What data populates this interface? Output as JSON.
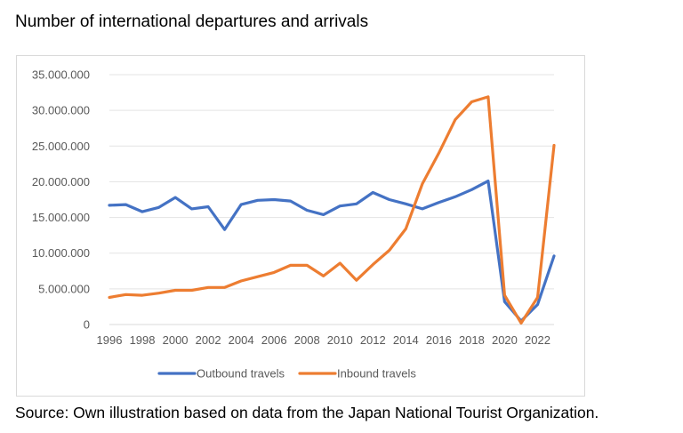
{
  "title": "Number of international departures and arrivals",
  "source": "Source: Own illustration based on data from the Japan National Tourist Organization.",
  "chart_data": {
    "type": "line",
    "title": "",
    "xlabel": "",
    "ylabel": "",
    "x": [
      1996,
      1997,
      1998,
      1999,
      2000,
      2001,
      2002,
      2003,
      2004,
      2005,
      2006,
      2007,
      2008,
      2009,
      2010,
      2011,
      2012,
      2013,
      2014,
      2015,
      2016,
      2017,
      2018,
      2019,
      2020,
      2021,
      2022,
      2023
    ],
    "xlim": [
      1996,
      2023
    ],
    "ylim": [
      0,
      35000000
    ],
    "x_tick_labels": [
      "1996",
      "1998",
      "2000",
      "2002",
      "2004",
      "2006",
      "2008",
      "2010",
      "2012",
      "2014",
      "2016",
      "2018",
      "2020",
      "2022"
    ],
    "y_ticks": [
      0,
      5000000,
      10000000,
      15000000,
      20000000,
      25000000,
      30000000,
      35000000
    ],
    "y_tick_labels": [
      "0",
      "5.000.000",
      "10.000.000",
      "15.000.000",
      "20.000.000",
      "25.000.000",
      "30.000.000",
      "35.000.000"
    ],
    "grid": "horizontal",
    "legend_position": "bottom",
    "series": [
      {
        "name": "Outbound travels",
        "color": "#4472c4",
        "values": [
          16700000,
          16800000,
          15800000,
          16400000,
          17800000,
          16200000,
          16500000,
          13300000,
          16800000,
          17400000,
          17500000,
          17300000,
          16000000,
          15400000,
          16600000,
          16900000,
          18500000,
          17500000,
          16900000,
          16200000,
          17100000,
          17900000,
          18900000,
          20100000,
          3200000,
          500000,
          2800000,
          9600000
        ]
      },
      {
        "name": "Inbound travels",
        "color": "#ed7d31",
        "values": [
          3800000,
          4200000,
          4100000,
          4400000,
          4800000,
          4800000,
          5200000,
          5200000,
          6100000,
          6700000,
          7300000,
          8300000,
          8300000,
          6800000,
          8600000,
          6200000,
          8400000,
          10400000,
          13400000,
          19700000,
          24000000,
          28700000,
          31200000,
          31900000,
          4100000,
          200000,
          3800000,
          25100000
        ]
      }
    ]
  }
}
